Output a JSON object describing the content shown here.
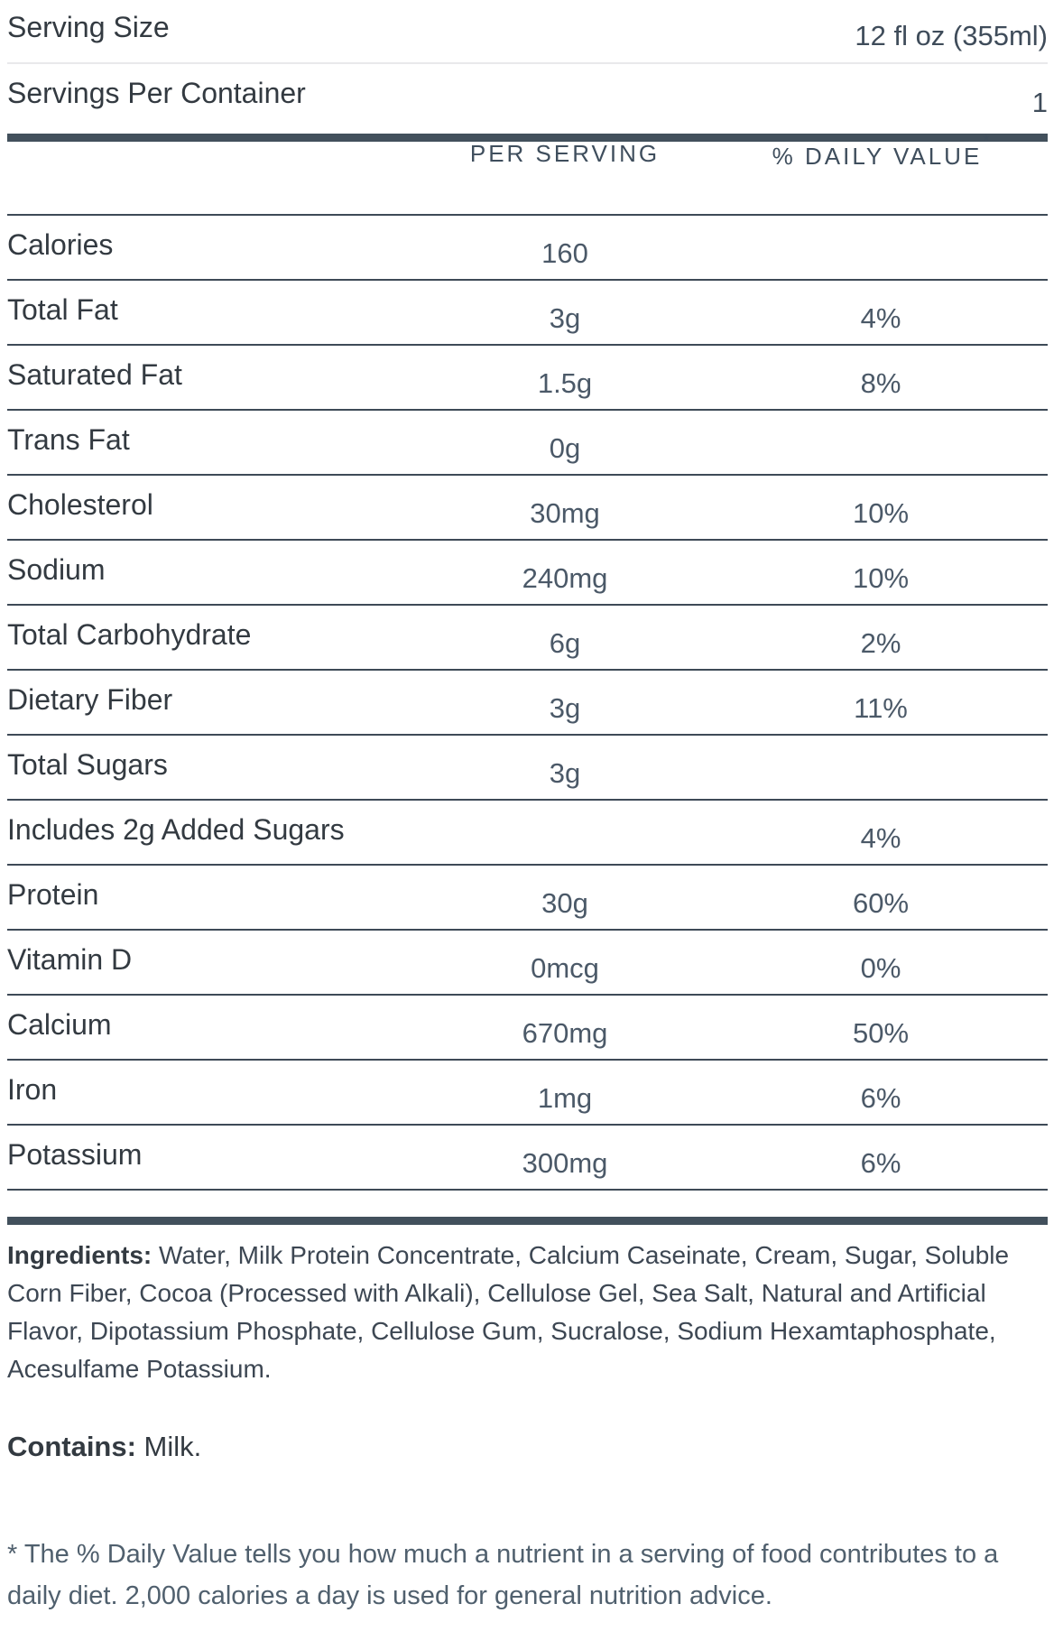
{
  "serving_info": {
    "serving_size_label": "Serving Size",
    "serving_size_value": "12 fl oz (355ml)",
    "servings_per_container_label": "Servings Per Container",
    "servings_per_container_value": "1"
  },
  "table": {
    "headers": {
      "per_serving": "PER SERVING",
      "daily_value": "% DAILY VALUE",
      "daily_value_mark": "*"
    },
    "rows": [
      {
        "label": "Calories",
        "amount": "160",
        "dv": ""
      },
      {
        "label": "Total Fat",
        "amount": "3g",
        "dv": "4%"
      },
      {
        "label": "Saturated Fat",
        "amount": "1.5g",
        "dv": "8%"
      },
      {
        "label": "Trans Fat",
        "amount": "0g",
        "dv": ""
      },
      {
        "label": "Cholesterol",
        "amount": "30mg",
        "dv": "10%"
      },
      {
        "label": "Sodium",
        "amount": "240mg",
        "dv": "10%"
      },
      {
        "label": "Total Carbohydrate",
        "amount": "6g",
        "dv": "2%"
      },
      {
        "label": "Dietary Fiber",
        "amount": "3g",
        "dv": "11%"
      },
      {
        "label": "Total Sugars",
        "amount": "3g",
        "dv": ""
      },
      {
        "label": "Includes 2g Added Sugars",
        "amount": "",
        "dv": "4%"
      },
      {
        "label": "Protein",
        "amount": "30g",
        "dv": "60%"
      },
      {
        "label": "Vitamin D",
        "amount": "0mcg",
        "dv": "0%"
      },
      {
        "label": "Calcium",
        "amount": "670mg",
        "dv": "50%"
      },
      {
        "label": "Iron",
        "amount": "1mg",
        "dv": "6%"
      },
      {
        "label": "Potassium",
        "amount": "300mg",
        "dv": "6%"
      }
    ]
  },
  "ingredients": {
    "label": "Ingredients:",
    "text": " Water, Milk Protein Concentrate, Calcium Caseinate, Cream, Sugar, Soluble Corn Fiber, Cocoa (Processed with Alkali), Cellulose Gel, Sea Salt, Natural and Artificial Flavor, Dipotassium Phosphate, Cellulose Gum, Sucralose, Sodium Hexamtaphosphate, Acesulfame Potassium."
  },
  "allergens": {
    "label": "Contains:",
    "text": " Milk."
  },
  "footnote": "* The % Daily Value tells you how much a nutrient in a serving of food contributes to a daily diet. 2,000 calories a day is used for general nutrition advice.",
  "colors": {
    "label_text": "#333a41",
    "value_text": "#4b5968",
    "header_text": "#3f4e5d",
    "divider_dark": "#3e4a57",
    "divider_light": "#e9e9eb",
    "section_bar": "#42505c",
    "background": "#ffffff"
  }
}
